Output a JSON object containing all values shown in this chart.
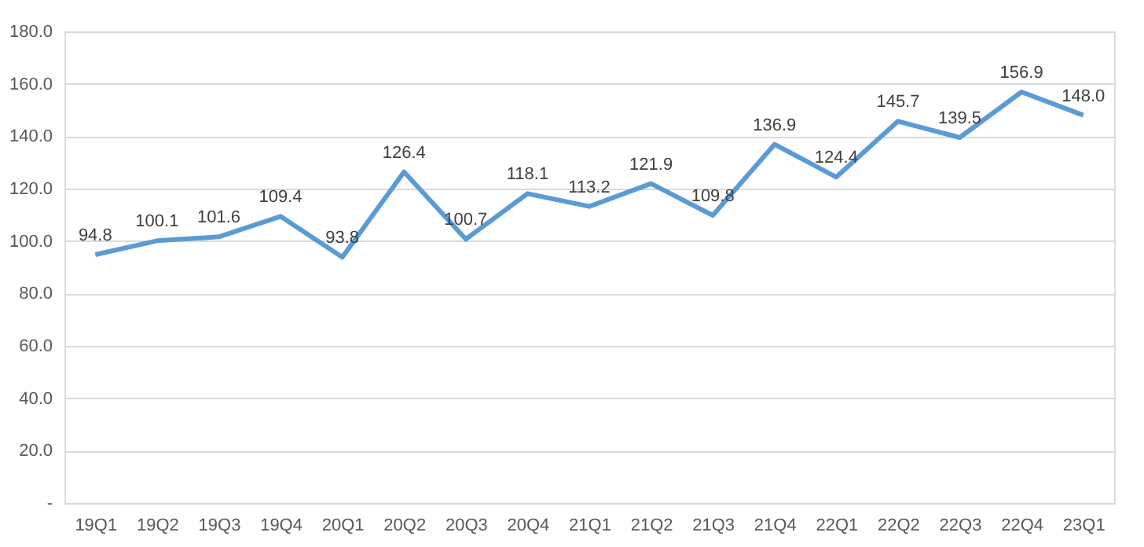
{
  "chart_data": {
    "type": "line",
    "categories": [
      "19Q1",
      "19Q2",
      "19Q3",
      "19Q4",
      "20Q1",
      "20Q2",
      "20Q3",
      "20Q4",
      "21Q1",
      "21Q2",
      "21Q3",
      "21Q4",
      "22Q1",
      "22Q2",
      "22Q3",
      "22Q4",
      "23Q1"
    ],
    "series": [
      {
        "color": "#5b9bd5",
        "values": [
          94.8,
          100.1,
          101.6,
          109.4,
          93.8,
          126.4,
          100.7,
          118.1,
          113.2,
          121.9,
          109.8,
          136.9,
          124.4,
          145.7,
          139.5,
          156.9,
          148.0
        ]
      }
    ],
    "value_labels": [
      "94.8",
      "100.1",
      "101.6",
      "109.4",
      "93.8",
      "126.4",
      "100.7",
      "118.1",
      "113.2",
      "121.9",
      "109.8",
      "136.9",
      "124.4",
      "145.7",
      "139.5",
      "156.9",
      "148.0"
    ],
    "ylim": [
      0,
      180
    ],
    "yticks": [
      {
        "value": 0,
        "label": "-"
      },
      {
        "value": 20,
        "label": "20.0"
      },
      {
        "value": 40,
        "label": "40.0"
      },
      {
        "value": 60,
        "label": "60.0"
      },
      {
        "value": 80,
        "label": "80.0"
      },
      {
        "value": 100,
        "label": "100.0"
      },
      {
        "value": 120,
        "label": "120.0"
      },
      {
        "value": 140,
        "label": "140.0"
      },
      {
        "value": 160,
        "label": "160.0"
      },
      {
        "value": 180,
        "label": "180.0"
      }
    ],
    "grid": "y",
    "marker": "none",
    "line_style": "solid"
  }
}
